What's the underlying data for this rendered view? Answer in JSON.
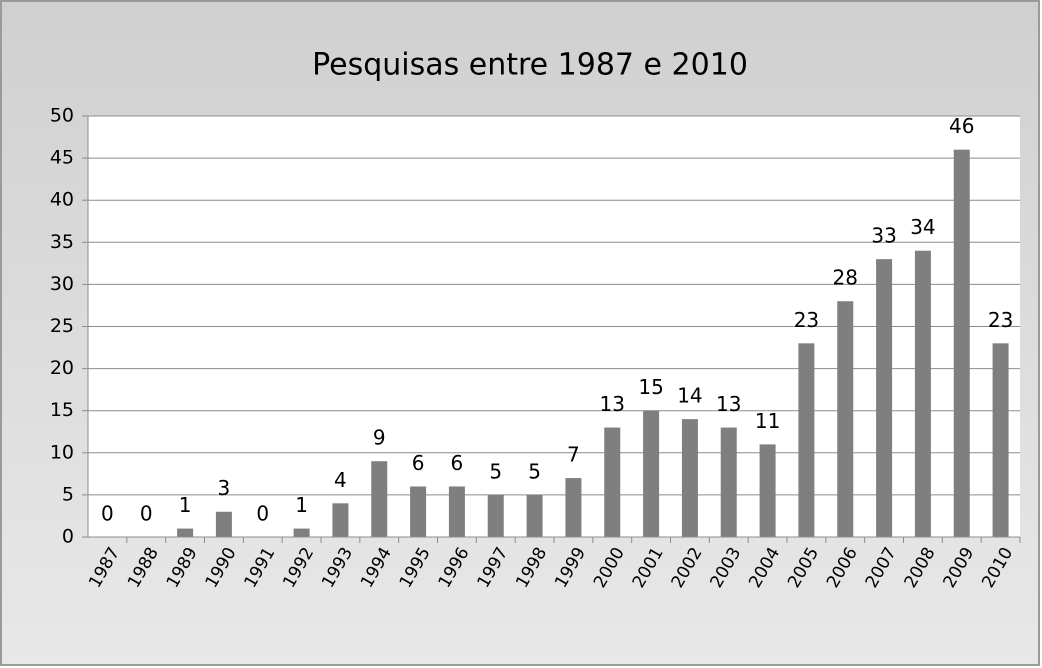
{
  "chart_data": {
    "type": "bar",
    "title": "Pesquisas entre 1987 e 2010",
    "categories": [
      "1987",
      "1988",
      "1989",
      "1990",
      "1991",
      "1992",
      "1993",
      "1994",
      "1995",
      "1996",
      "1997",
      "1998",
      "1999",
      "2000",
      "2001",
      "2002",
      "2003",
      "2004",
      "2005",
      "2006",
      "2007",
      "2008",
      "2009",
      "2010"
    ],
    "values": [
      0,
      0,
      1,
      3,
      0,
      1,
      4,
      9,
      6,
      6,
      5,
      5,
      7,
      13,
      15,
      14,
      13,
      11,
      23,
      28,
      33,
      34,
      46,
      23
    ],
    "color": "#7f7f7f",
    "ylim": [
      0,
      50
    ],
    "yticks": [
      0,
      5,
      10,
      15,
      20,
      25,
      30,
      35,
      40,
      45,
      50
    ],
    "grid": true
  }
}
